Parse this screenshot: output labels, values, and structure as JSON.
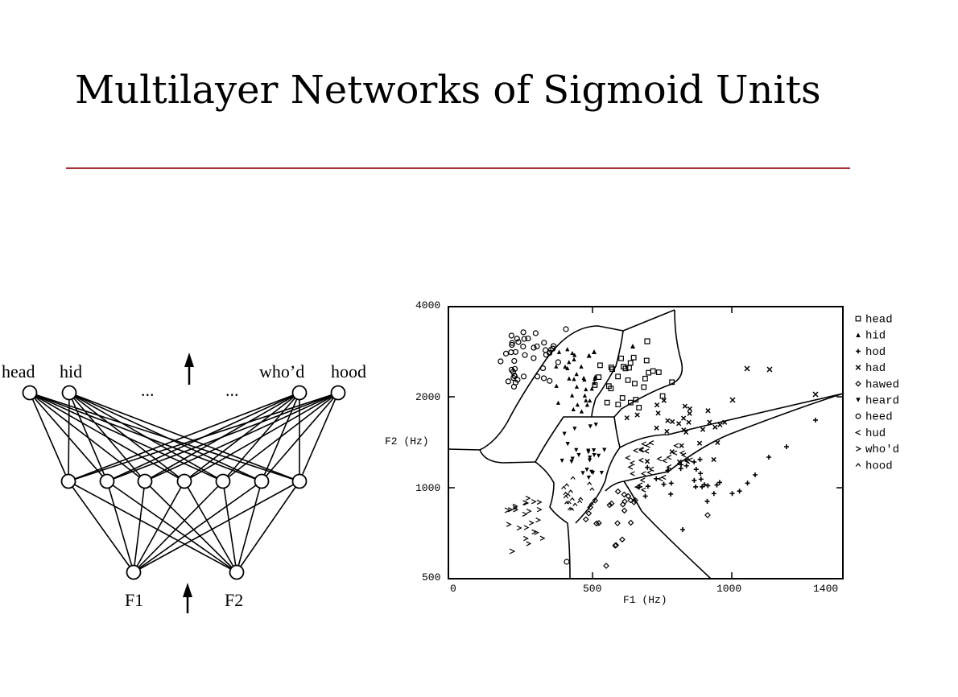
{
  "slide": {
    "title": "Multilayer Networks of Sigmoid Units"
  },
  "network": {
    "outputs": [
      "head",
      "hid",
      "who’d",
      "hood"
    ],
    "ellipsis": "...",
    "inputs": [
      "F1",
      "F2"
    ]
  },
  "plot": {
    "xlabel": "F1 (Hz)",
    "ylabel": "F2 (Hz)",
    "xticks": [
      "0",
      "500",
      "1000",
      "1400"
    ],
    "yticks": [
      "4000",
      "2000",
      "1000",
      "500"
    ],
    "legend": [
      {
        "symbol": "square",
        "label": "head"
      },
      {
        "symbol": "triangle",
        "label": "hid"
      },
      {
        "symbol": "plus",
        "label": "hod"
      },
      {
        "symbol": "cross",
        "label": "had"
      },
      {
        "symbol": "diamond",
        "label": "hawed"
      },
      {
        "symbol": "down-triangle",
        "label": "heard"
      },
      {
        "symbol": "circle",
        "label": "heed"
      },
      {
        "symbol": "less-than",
        "label": "hud"
      },
      {
        "symbol": "greater-than",
        "label": "who'd"
      },
      {
        "symbol": "caret",
        "label": "hood"
      }
    ]
  },
  "colors": {
    "rule": "#c0282d"
  }
}
